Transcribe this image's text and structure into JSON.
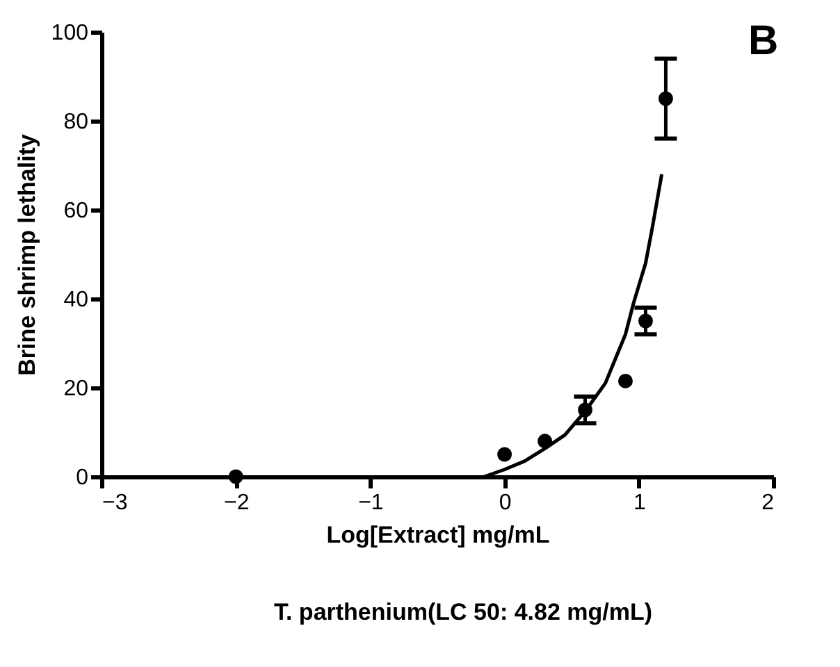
{
  "chart_data": {
    "type": "scatter",
    "xlabel": "Log[Extract] mg/mL",
    "ylabel": "Brine shrimp lethality",
    "xlim": [
      -3,
      2
    ],
    "xticks": [
      -3,
      -2,
      -1,
      0,
      1,
      2
    ],
    "ylim": [
      0,
      100
    ],
    "yticks": [
      0,
      20,
      40,
      60,
      80,
      100
    ],
    "grid": false,
    "annotations": [
      "B",
      "T. parthenium(LC 50: 4.82 mg/mL)"
    ],
    "series": [
      {
        "color": "#000000",
        "marker": "circle",
        "x": [
          -2,
          0,
          0.3,
          0.6,
          0.9,
          1.05,
          1.2
        ],
        "values": [
          0,
          5,
          8,
          15,
          21.5,
          35,
          85
        ],
        "errors": [
          null,
          null,
          null,
          3,
          null,
          3,
          9
        ]
      },
      {
        "type": "line",
        "color": "#000000",
        "line_style": "solid",
        "x": [
          -0.15,
          0,
          0.15,
          0.3,
          0.45,
          0.6,
          0.75,
          0.9,
          0.96,
          1.05,
          1.1,
          1.17
        ],
        "values": [
          0,
          1.6,
          3.5,
          6.3,
          9.4,
          14.7,
          21,
          32,
          39,
          48,
          56,
          68
        ]
      }
    ]
  }
}
